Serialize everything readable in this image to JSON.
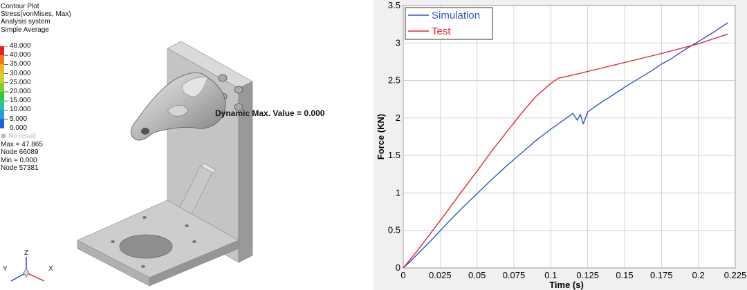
{
  "contour": {
    "lines": [
      "Contour Plot",
      "Stress(vonMises, Max)",
      "Analysis system",
      "Simple Average"
    ],
    "levels": [
      "48.000",
      "40.000",
      "35.000",
      "30.000",
      "25.000",
      "20.000",
      "15.000",
      "10.000",
      "5.000",
      "0.000"
    ],
    "level_colors": [
      "#e8201c",
      "#f07a12",
      "#f2b61c",
      "#cfd226",
      "#7fcf24",
      "#2ec83c",
      "#22c4a4",
      "#1f9ee0",
      "#1c5fe0",
      "#c0c0c0"
    ],
    "no_result": "No result",
    "stats": [
      "Max = 47.865",
      "Node 66089",
      "Min = 0.000",
      "Node 57381"
    ],
    "dynamic_max": "Dynamic Max. Value =  0.000",
    "triad": {
      "z": "Z",
      "y": "Y",
      "x": "X"
    }
  },
  "chart_data": {
    "type": "line",
    "xlabel": "Time (s)",
    "ylabel": "Force (KN)",
    "xlim": [
      0,
      0.225
    ],
    "ylim": [
      0,
      3.5
    ],
    "xticks": [
      "0",
      "0.025",
      "0.05",
      "0.075",
      "0.1",
      "0.125",
      "0.15",
      "0.175",
      "0.2",
      "0.225"
    ],
    "yticks": [
      "0",
      "0.5",
      "1",
      "1.5",
      "2",
      "2.5",
      "3",
      "3.5"
    ],
    "grid": true,
    "legend_position": "top-left",
    "series": [
      {
        "name": "Simulation",
        "color": "#2f55c8",
        "x": [
          0,
          0.005,
          0.01,
          0.02,
          0.03,
          0.04,
          0.05,
          0.06,
          0.07,
          0.08,
          0.09,
          0.1,
          0.11,
          0.115,
          0.118,
          0.12,
          0.122,
          0.125,
          0.13,
          0.135,
          0.14,
          0.15,
          0.16,
          0.17,
          0.175,
          0.18,
          0.19,
          0.2,
          0.21,
          0.22
        ],
        "y": [
          0,
          0.09,
          0.19,
          0.39,
          0.6,
          0.8,
          0.99,
          1.18,
          1.36,
          1.53,
          1.7,
          1.85,
          1.99,
          2.06,
          1.97,
          2.05,
          1.92,
          2.08,
          2.15,
          2.22,
          2.28,
          2.41,
          2.53,
          2.65,
          2.72,
          2.77,
          2.9,
          3.02,
          3.14,
          3.27
        ]
      },
      {
        "name": "Test",
        "color": "#e0232b",
        "x": [
          0,
          0.01,
          0.02,
          0.03,
          0.04,
          0.05,
          0.06,
          0.07,
          0.08,
          0.09,
          0.1,
          0.105,
          0.11,
          0.125,
          0.15,
          0.175,
          0.2,
          0.22
        ],
        "y": [
          0,
          0.24,
          0.5,
          0.76,
          1.03,
          1.29,
          1.56,
          1.81,
          2.06,
          2.29,
          2.46,
          2.53,
          2.55,
          2.62,
          2.74,
          2.86,
          2.99,
          3.12
        ]
      }
    ]
  }
}
